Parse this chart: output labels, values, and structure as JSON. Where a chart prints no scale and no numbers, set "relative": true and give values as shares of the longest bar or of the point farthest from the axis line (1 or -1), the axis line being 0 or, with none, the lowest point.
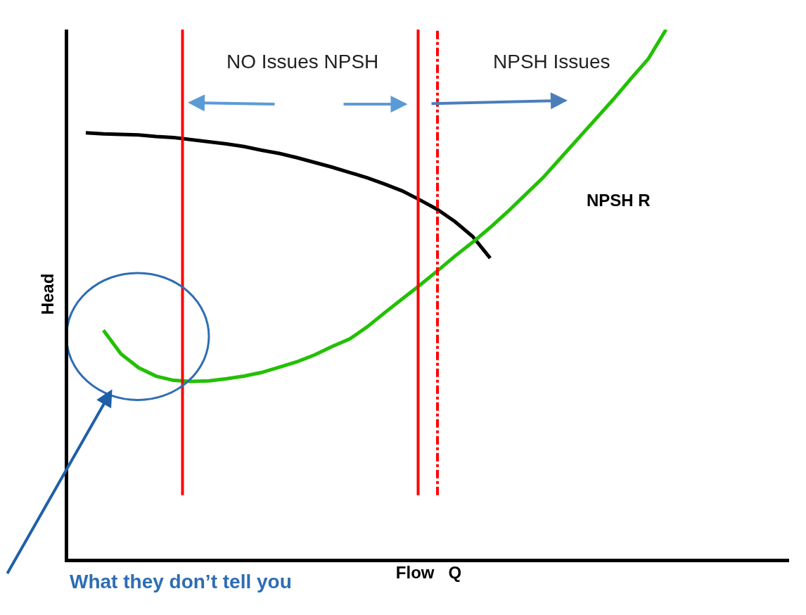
{
  "chart_data": {
    "type": "line",
    "relative": true,
    "xlabel": "Flow   Q",
    "ylabel": "Head",
    "legend": false,
    "marker": "none",
    "categories": [
      null,
      null,
      null,
      null,
      null,
      null,
      null,
      null,
      null,
      null,
      null,
      null,
      null,
      null,
      null,
      null,
      null,
      null,
      null,
      null,
      null,
      null,
      null,
      null,
      null,
      null,
      null,
      null,
      null,
      null,
      null,
      null,
      null,
      null,
      null,
      null,
      null,
      null,
      null,
      null,
      null,
      null
    ],
    "series": [
      {
        "color": "#000000",
        "values": [
          null,
          0.805,
          0.803,
          0.802,
          0.801,
          0.798,
          0.796,
          0.792,
          0.788,
          0.784,
          0.779,
          0.772,
          0.766,
          0.758,
          0.749,
          0.74,
          0.73,
          0.72,
          0.708,
          0.695,
          0.678,
          0.66,
          0.637,
          0.609,
          0.568,
          null,
          null,
          null,
          null,
          null,
          null,
          null,
          null,
          null,
          null,
          null,
          null,
          null,
          null,
          null,
          null,
          null
        ]
      },
      {
        "color": "#22c000",
        "values": [
          null,
          null,
          0.432,
          0.387,
          0.361,
          0.345,
          0.337,
          0.335,
          0.336,
          0.34,
          0.345,
          0.352,
          0.362,
          0.372,
          0.385,
          0.401,
          0.415,
          0.438,
          0.465,
          0.491,
          0.517,
          0.544,
          0.572,
          0.598,
          0.626,
          0.656,
          0.688,
          0.72,
          0.757,
          0.794,
          0.831,
          0.868,
          0.907,
          0.945,
          1.0,
          null,
          null,
          null,
          null,
          null,
          null,
          null
        ]
      }
    ],
    "annotations": [
      "NO Issues NPSH",
      "NPSH Issues",
      "NPSH R",
      "What they don’t tell you"
    ]
  }
}
